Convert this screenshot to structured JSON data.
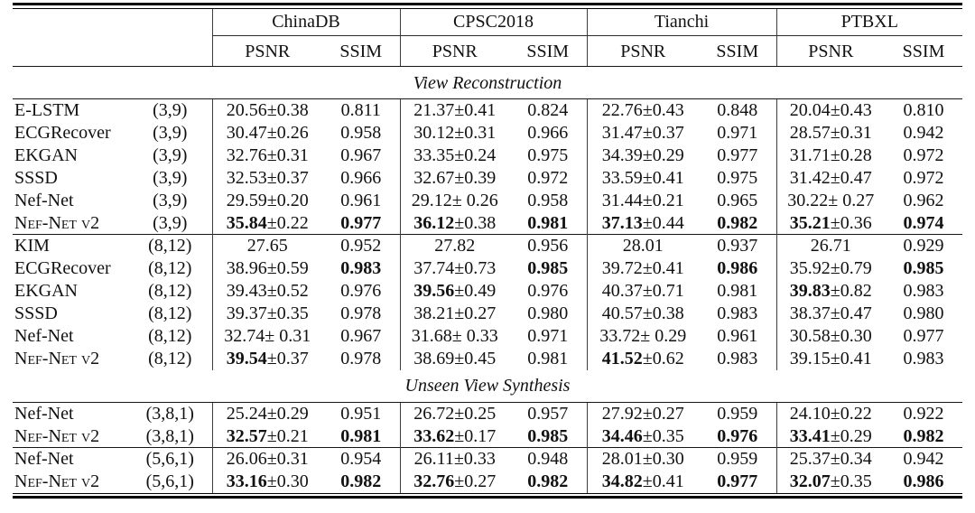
{
  "colors": {
    "background": "#ffffff",
    "text": "#111111",
    "rule": "#000000"
  },
  "table": {
    "datasets": [
      "ChinaDB",
      "CPSC2018",
      "Tianchi",
      "PTBXL"
    ],
    "metrics": [
      "PSNR",
      "SSIM"
    ],
    "sections": [
      {
        "title": "View Reconstruction",
        "groups": [
          {
            "rows": [
              {
                "method": "E-LSTM",
                "smallcaps": false,
                "config": "(3,9)",
                "data": [
                  {
                    "psnr": "20.56",
                    "pm": "±0.38",
                    "psnr_bold": false,
                    "ssim": "0.811",
                    "ssim_bold": false
                  },
                  {
                    "psnr": "21.37",
                    "pm": "±0.41",
                    "psnr_bold": false,
                    "ssim": "0.824",
                    "ssim_bold": false
                  },
                  {
                    "psnr": "22.76",
                    "pm": "±0.43",
                    "psnr_bold": false,
                    "ssim": "0.848",
                    "ssim_bold": false
                  },
                  {
                    "psnr": "20.04",
                    "pm": "±0.43",
                    "psnr_bold": false,
                    "ssim": "0.810",
                    "ssim_bold": false
                  }
                ]
              },
              {
                "method": "ECGRecover",
                "smallcaps": false,
                "config": "(3,9)",
                "data": [
                  {
                    "psnr": "30.47",
                    "pm": "±0.26",
                    "psnr_bold": false,
                    "ssim": "0.958",
                    "ssim_bold": false
                  },
                  {
                    "psnr": "30.12",
                    "pm": "±0.31",
                    "psnr_bold": false,
                    "ssim": "0.966",
                    "ssim_bold": false
                  },
                  {
                    "psnr": "31.47",
                    "pm": "±0.37",
                    "psnr_bold": false,
                    "ssim": "0.971",
                    "ssim_bold": false
                  },
                  {
                    "psnr": "28.57",
                    "pm": "±0.31",
                    "psnr_bold": false,
                    "ssim": "0.942",
                    "ssim_bold": false
                  }
                ]
              },
              {
                "method": "EKGAN",
                "smallcaps": false,
                "config": "(3,9)",
                "data": [
                  {
                    "psnr": "32.76",
                    "pm": "±0.31",
                    "psnr_bold": false,
                    "ssim": "0.967",
                    "ssim_bold": false
                  },
                  {
                    "psnr": "33.35",
                    "pm": "±0.24",
                    "psnr_bold": false,
                    "ssim": "0.975",
                    "ssim_bold": false
                  },
                  {
                    "psnr": "34.39",
                    "pm": "±0.29",
                    "psnr_bold": false,
                    "ssim": "0.977",
                    "ssim_bold": false
                  },
                  {
                    "psnr": "31.71",
                    "pm": "±0.28",
                    "psnr_bold": false,
                    "ssim": "0.972",
                    "ssim_bold": false
                  }
                ]
              },
              {
                "method": "SSSD",
                "smallcaps": false,
                "config": "(3,9)",
                "data": [
                  {
                    "psnr": "32.53",
                    "pm": "±0.37",
                    "psnr_bold": false,
                    "ssim": "0.966",
                    "ssim_bold": false
                  },
                  {
                    "psnr": "32.67",
                    "pm": "±0.39",
                    "psnr_bold": false,
                    "ssim": "0.972",
                    "ssim_bold": false
                  },
                  {
                    "psnr": "33.59",
                    "pm": "±0.41",
                    "psnr_bold": false,
                    "ssim": "0.975",
                    "ssim_bold": false
                  },
                  {
                    "psnr": "31.42",
                    "pm": "±0.47",
                    "psnr_bold": false,
                    "ssim": "0.972",
                    "ssim_bold": false
                  }
                ]
              },
              {
                "method": "Nef-Net",
                "smallcaps": false,
                "config": "(3,9)",
                "data": [
                  {
                    "psnr": "29.59",
                    "pm": "±0.20",
                    "psnr_bold": false,
                    "ssim": "0.961",
                    "ssim_bold": false
                  },
                  {
                    "psnr": "29.12",
                    "pm": "± 0.26",
                    "psnr_bold": false,
                    "ssim": "0.958",
                    "ssim_bold": false
                  },
                  {
                    "psnr": "31.44",
                    "pm": "±0.21",
                    "psnr_bold": false,
                    "ssim": "0.965",
                    "ssim_bold": false
                  },
                  {
                    "psnr": "30.22",
                    "pm": "± 0.27",
                    "psnr_bold": false,
                    "ssim": "0.962",
                    "ssim_bold": false
                  }
                ]
              },
              {
                "method": "Nef-Net v2",
                "smallcaps": true,
                "config": "(3,9)",
                "data": [
                  {
                    "psnr": "35.84",
                    "pm": "±0.22",
                    "psnr_bold": true,
                    "ssim": "0.977",
                    "ssim_bold": true
                  },
                  {
                    "psnr": "36.12",
                    "pm": "±0.38",
                    "psnr_bold": true,
                    "ssim": "0.981",
                    "ssim_bold": true
                  },
                  {
                    "psnr": "37.13",
                    "pm": "±0.44",
                    "psnr_bold": true,
                    "ssim": "0.982",
                    "ssim_bold": true
                  },
                  {
                    "psnr": "35.21",
                    "pm": "±0.36",
                    "psnr_bold": true,
                    "ssim": "0.974",
                    "ssim_bold": true
                  }
                ]
              }
            ]
          },
          {
            "rows": [
              {
                "method": "KIM",
                "smallcaps": false,
                "config": "(8,12)",
                "data": [
                  {
                    "psnr": "27.65",
                    "pm": "",
                    "psnr_bold": false,
                    "ssim": "0.952",
                    "ssim_bold": false
                  },
                  {
                    "psnr": "27.82",
                    "pm": "",
                    "psnr_bold": false,
                    "ssim": "0.956",
                    "ssim_bold": false
                  },
                  {
                    "psnr": "28.01",
                    "pm": "",
                    "psnr_bold": false,
                    "ssim": "0.937",
                    "ssim_bold": false
                  },
                  {
                    "psnr": "26.71",
                    "pm": "",
                    "psnr_bold": false,
                    "ssim": "0.929",
                    "ssim_bold": false
                  }
                ]
              },
              {
                "method": "ECGRecover",
                "smallcaps": false,
                "config": "(8,12)",
                "data": [
                  {
                    "psnr": "38.96",
                    "pm": "±0.59",
                    "psnr_bold": false,
                    "ssim": "0.983",
                    "ssim_bold": true
                  },
                  {
                    "psnr": "37.74",
                    "pm": "±0.73",
                    "psnr_bold": false,
                    "ssim": "0.985",
                    "ssim_bold": true
                  },
                  {
                    "psnr": "39.72",
                    "pm": "±0.41",
                    "psnr_bold": false,
                    "ssim": "0.986",
                    "ssim_bold": true
                  },
                  {
                    "psnr": "35.92",
                    "pm": "±0.79",
                    "psnr_bold": false,
                    "ssim": "0.985",
                    "ssim_bold": true
                  }
                ]
              },
              {
                "method": "EKGAN",
                "smallcaps": false,
                "config": "(8,12)",
                "data": [
                  {
                    "psnr": "39.43",
                    "pm": "±0.52",
                    "psnr_bold": false,
                    "ssim": "0.976",
                    "ssim_bold": false
                  },
                  {
                    "psnr": "39.56",
                    "pm": "±0.49",
                    "psnr_bold": true,
                    "ssim": "0.976",
                    "ssim_bold": false
                  },
                  {
                    "psnr": "40.37",
                    "pm": "±0.71",
                    "psnr_bold": false,
                    "ssim": "0.981",
                    "ssim_bold": false
                  },
                  {
                    "psnr": "39.83",
                    "pm": "±0.82",
                    "psnr_bold": true,
                    "ssim": "0.983",
                    "ssim_bold": false
                  }
                ]
              },
              {
                "method": "SSSD",
                "smallcaps": false,
                "config": "(8,12)",
                "data": [
                  {
                    "psnr": "39.37",
                    "pm": "±0.35",
                    "psnr_bold": false,
                    "ssim": "0.978",
                    "ssim_bold": false
                  },
                  {
                    "psnr": "38.21",
                    "pm": "±0.27",
                    "psnr_bold": false,
                    "ssim": "0.980",
                    "ssim_bold": false
                  },
                  {
                    "psnr": "40.57",
                    "pm": "±0.38",
                    "psnr_bold": false,
                    "ssim": "0.983",
                    "ssim_bold": false
                  },
                  {
                    "psnr": "38.37",
                    "pm": "±0.47",
                    "psnr_bold": false,
                    "ssim": "0.980",
                    "ssim_bold": false
                  }
                ]
              },
              {
                "method": "Nef-Net",
                "smallcaps": false,
                "config": "(8,12)",
                "data": [
                  {
                    "psnr": "32.74",
                    "pm": "± 0.31",
                    "psnr_bold": false,
                    "ssim": "0.967",
                    "ssim_bold": false
                  },
                  {
                    "psnr": "31.68",
                    "pm": "± 0.33",
                    "psnr_bold": false,
                    "ssim": "0.971",
                    "ssim_bold": false
                  },
                  {
                    "psnr": "33.72",
                    "pm": "± 0.29",
                    "psnr_bold": false,
                    "ssim": "0.961",
                    "ssim_bold": false
                  },
                  {
                    "psnr": "30.58",
                    "pm": "±0.30",
                    "psnr_bold": false,
                    "ssim": "0.977",
                    "ssim_bold": false
                  }
                ]
              },
              {
                "method": "Nef-Net v2",
                "smallcaps": true,
                "config": "(8,12)",
                "data": [
                  {
                    "psnr": "39.54",
                    "pm": "±0.37",
                    "psnr_bold": true,
                    "ssim": "0.978",
                    "ssim_bold": false
                  },
                  {
                    "psnr": "38.69",
                    "pm": "±0.45",
                    "psnr_bold": false,
                    "ssim": "0.981",
                    "ssim_bold": false
                  },
                  {
                    "psnr": "41.52",
                    "pm": "±0.62",
                    "psnr_bold": true,
                    "ssim": "0.983",
                    "ssim_bold": false
                  },
                  {
                    "psnr": "39.15",
                    "pm": "±0.41",
                    "psnr_bold": false,
                    "ssim": "0.983",
                    "ssim_bold": false
                  }
                ]
              }
            ]
          }
        ]
      },
      {
        "title": "Unseen View Synthesis",
        "groups": [
          {
            "rows": [
              {
                "method": "Nef-Net",
                "smallcaps": false,
                "config": "(3,8,1)",
                "data": [
                  {
                    "psnr": "25.24",
                    "pm": "±0.29",
                    "psnr_bold": false,
                    "ssim": "0.951",
                    "ssim_bold": false
                  },
                  {
                    "psnr": "26.72",
                    "pm": "±0.25",
                    "psnr_bold": false,
                    "ssim": "0.957",
                    "ssim_bold": false
                  },
                  {
                    "psnr": "27.92",
                    "pm": "±0.27",
                    "psnr_bold": false,
                    "ssim": "0.959",
                    "ssim_bold": false
                  },
                  {
                    "psnr": "24.10",
                    "pm": "±0.22",
                    "psnr_bold": false,
                    "ssim": "0.922",
                    "ssim_bold": false
                  }
                ]
              },
              {
                "method": "Nef-Net v2",
                "smallcaps": true,
                "config": "(3,8,1)",
                "data": [
                  {
                    "psnr": "32.57",
                    "pm": "±0.21",
                    "psnr_bold": true,
                    "ssim": "0.981",
                    "ssim_bold": true
                  },
                  {
                    "psnr": "33.62",
                    "pm": "±0.17",
                    "psnr_bold": true,
                    "ssim": "0.985",
                    "ssim_bold": true
                  },
                  {
                    "psnr": "34.46",
                    "pm": "±0.35",
                    "psnr_bold": true,
                    "ssim": "0.976",
                    "ssim_bold": true
                  },
                  {
                    "psnr": "33.41",
                    "pm": "±0.29",
                    "psnr_bold": true,
                    "ssim": "0.982",
                    "ssim_bold": true
                  }
                ]
              }
            ]
          },
          {
            "rows": [
              {
                "method": "Nef-Net",
                "smallcaps": false,
                "config": "(5,6,1)",
                "data": [
                  {
                    "psnr": "26.06",
                    "pm": "±0.31",
                    "psnr_bold": false,
                    "ssim": "0.954",
                    "ssim_bold": false
                  },
                  {
                    "psnr": "26.11",
                    "pm": "±0.33",
                    "psnr_bold": false,
                    "ssim": "0.948",
                    "ssim_bold": false
                  },
                  {
                    "psnr": "28.01",
                    "pm": "±0.30",
                    "psnr_bold": false,
                    "ssim": "0.959",
                    "ssim_bold": false
                  },
                  {
                    "psnr": "25.37",
                    "pm": "±0.34",
                    "psnr_bold": false,
                    "ssim": "0.942",
                    "ssim_bold": false
                  }
                ]
              },
              {
                "method": "Nef-Net v2",
                "smallcaps": true,
                "config": "(5,6,1)",
                "data": [
                  {
                    "psnr": "33.16",
                    "pm": "±0.30",
                    "psnr_bold": true,
                    "ssim": "0.982",
                    "ssim_bold": true
                  },
                  {
                    "psnr": "32.76",
                    "pm": "±0.27",
                    "psnr_bold": true,
                    "ssim": "0.982",
                    "ssim_bold": true
                  },
                  {
                    "psnr": "34.82",
                    "pm": "±0.41",
                    "psnr_bold": true,
                    "ssim": "0.977",
                    "ssim_bold": true
                  },
                  {
                    "psnr": "32.07",
                    "pm": "±0.35",
                    "psnr_bold": true,
                    "ssim": "0.986",
                    "ssim_bold": true
                  }
                ]
              }
            ]
          }
        ]
      }
    ]
  }
}
